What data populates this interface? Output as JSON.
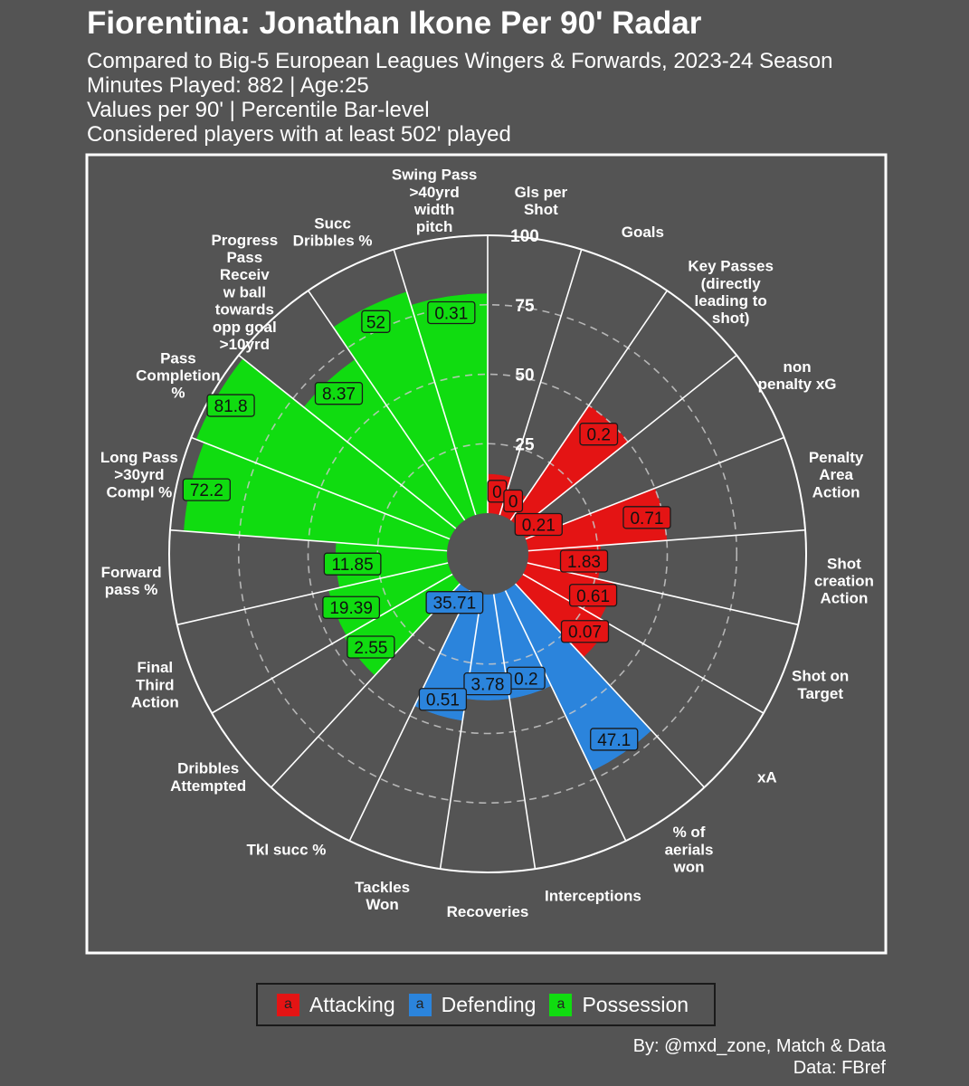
{
  "header": {
    "title": "Fiorentina: Jonathan Ikone Per 90' Radar",
    "subtitle_lines": [
      "Compared to Big-5 European Leagues Wingers & Forwards, 2023-24 Season",
      "Minutes Played: 882 | Age:25",
      "Values per 90' | Percentile Bar-level",
      "Considered players with at least 502' played"
    ]
  },
  "legend": {
    "key_glyph": "a",
    "items": [
      {
        "label": "Attacking",
        "color": "#e41414"
      },
      {
        "label": "Defending",
        "color": "#2b84dc"
      },
      {
        "label": "Possession",
        "color": "#10dc10"
      }
    ]
  },
  "credits": {
    "line1": "By: @mxd_zone, Match & Data",
    "line2": "Data: FBref"
  },
  "chart_data": {
    "type": "bar",
    "coordinate_system": "polar",
    "value_scale": "percentile",
    "ylim": [
      0,
      100
    ],
    "ticks": [
      "25",
      "50",
      "75",
      "100"
    ],
    "grid": true,
    "legend_position": "bottom",
    "categories": [
      {
        "label": "Gls per\nShot",
        "group": "Attacking",
        "percentile": 14,
        "value_label": "0"
      },
      {
        "label": "Goals",
        "group": "Attacking",
        "percentile": 10,
        "value_label": "0"
      },
      {
        "label": "Key Passes\n(directly\nleading to\nshot)",
        "group": "Attacking",
        "percentile": 50,
        "value_label": "0.2"
      },
      {
        "label": "non\npenalty xG",
        "group": "Attacking",
        "percentile": 5,
        "value_label": "0.21"
      },
      {
        "label": "Penalty\nArea\nAction",
        "group": "Attacking",
        "percentile": 50,
        "value_label": "0.71"
      },
      {
        "label": "Shot\ncreation\nAction",
        "group": "Attacking",
        "percentile": 26,
        "value_label": "1.83"
      },
      {
        "label": "Shot on\nTarget",
        "group": "Attacking",
        "percentile": 32,
        "value_label": "0.61"
      },
      {
        "label": "xA",
        "group": "Attacking",
        "percentile": 36,
        "value_label": "0.07"
      },
      {
        "label": "% of\naerials\nwon",
        "group": "Defending",
        "percentile": 72,
        "value_label": "47.1"
      },
      {
        "label": "Interceptions",
        "group": "Defending",
        "percentile": 38,
        "value_label": "0.2"
      },
      {
        "label": "Recoveries",
        "group": "Defending",
        "percentile": 38,
        "value_label": "3.78"
      },
      {
        "label": "Tackles\nWon",
        "group": "Defending",
        "percentile": 46,
        "value_label": "0.51"
      },
      {
        "label": "Tkl succ %",
        "group": "Defending",
        "percentile": 3,
        "value_label": "35.71"
      },
      {
        "label": "Dribbles\nAttempted",
        "group": "Possession",
        "percentile": 45,
        "value_label": "2.55"
      },
      {
        "label": "Final\nThird\nAction",
        "group": "Possession",
        "percentile": 44,
        "value_label": "19.39"
      },
      {
        "label": "Forward\npass %",
        "group": "Possession",
        "percentile": 40,
        "value_label": "11.85"
      },
      {
        "label": "Long Pass\n>30yrd\nCompl %",
        "group": "Possession",
        "percentile": 95,
        "value_label": "72.2"
      },
      {
        "label": "Pass\nCompletion\n%",
        "group": "Possession",
        "percentile": 98,
        "value_label": "81.8"
      },
      {
        "label": "Progress\nPass\nReceiv\nw ball\ntowards\nopp goal\n>10yrd",
        "group": "Possession",
        "percentile": 70,
        "value_label": "8.37"
      },
      {
        "label": "Succ\nDribbles %",
        "group": "Possession",
        "percentile": 84,
        "value_label": "52"
      },
      {
        "label": "Swing Pass\n>40yrd\nwidth\npitch",
        "group": "Possession",
        "percentile": 79,
        "value_label": "0.31"
      }
    ]
  }
}
